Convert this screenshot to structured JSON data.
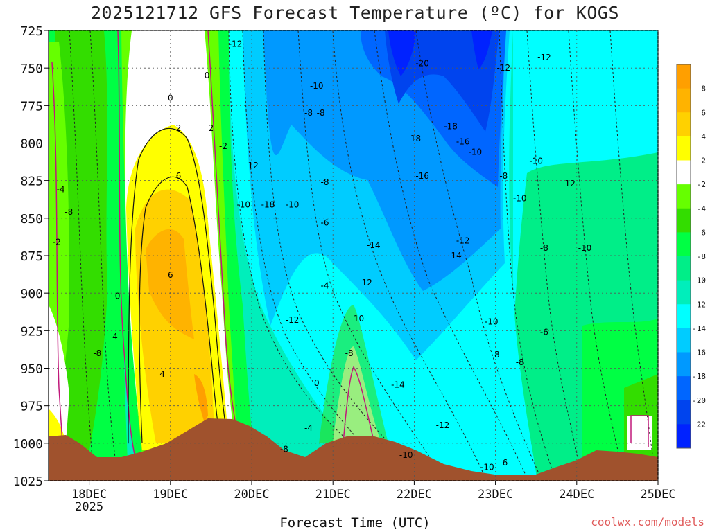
{
  "title": "2025121712 GFS Forecast Temperature (ºC) for KOGS",
  "credit": "coolwx.com/models",
  "chart_data": {
    "type": "heatmap",
    "title": "2025121712 GFS Forecast Temperature (ºC) for KOGS",
    "xlabel": "Forecast Time (UTC)",
    "ylabel": "",
    "y_ticks": [
      "725",
      "750",
      "775",
      "800",
      "825",
      "850",
      "875",
      "900",
      "925",
      "950",
      "975",
      "1000",
      "1025"
    ],
    "y_range": [
      725,
      1025
    ],
    "x_ticks": [
      "18DEC",
      "19DEC",
      "20DEC",
      "21DEC",
      "22DEC",
      "23DEC",
      "24DEC",
      "25DEC"
    ],
    "x_year_label": "2025",
    "x_range": [
      "17DEC 12Z",
      "25DEC 00Z"
    ],
    "colorbar": {
      "labels": [
        "8",
        "6",
        "4",
        "2",
        "-2",
        "-4",
        "-6",
        "-8",
        "-10",
        "-12",
        "-14",
        "-16",
        "-18",
        "-20",
        "-22"
      ],
      "colors": [
        "#ff9f00",
        "#ffb300",
        "#ffd100",
        "#ffff00",
        "#ffffff",
        "#66ff00",
        "#33dd00",
        "#00ff44",
        "#00ee88",
        "#00eebb",
        "#00ffff",
        "#00ccff",
        "#0099ff",
        "#0066ff",
        "#0044ee",
        "#0022ff"
      ]
    },
    "contour_labels": [
      {
        "t": 1.6,
        "p": 790,
        "v": "2"
      },
      {
        "t": 1.6,
        "p": 822,
        "v": "6"
      },
      {
        "t": 1.5,
        "p": 888,
        "v": "6"
      },
      {
        "t": 1.4,
        "p": 954,
        "v": "4"
      },
      {
        "t": 1.5,
        "p": 770,
        "v": "0"
      },
      {
        "t": 2.0,
        "p": 790,
        "v": "2"
      },
      {
        "t": 1.95,
        "p": 755,
        "v": "0"
      },
      {
        "t": 2.15,
        "p": 802,
        "v": "-2"
      },
      {
        "t": 2.3,
        "p": 734,
        "v": "-12"
      },
      {
        "t": 2.5,
        "p": 815,
        "v": "-12"
      },
      {
        "t": 2.4,
        "p": 841,
        "v": "-10"
      },
      {
        "t": 2.7,
        "p": 841,
        "v": "-18"
      },
      {
        "t": 3.0,
        "p": 841,
        "v": "-10"
      },
      {
        "t": 3.0,
        "p": 918,
        "v": "-12"
      },
      {
        "t": 3.2,
        "p": 780,
        "v": "-8"
      },
      {
        "t": 3.35,
        "p": 780,
        "v": "-8"
      },
      {
        "t": 3.3,
        "p": 762,
        "v": "-10"
      },
      {
        "t": 3.4,
        "p": 826,
        "v": "-8"
      },
      {
        "t": 3.4,
        "p": 853,
        "v": "-6"
      },
      {
        "t": 3.4,
        "p": 895,
        "v": "-4"
      },
      {
        "t": 3.3,
        "p": 960,
        "v": "0"
      },
      {
        "t": 3.2,
        "p": 990,
        "v": "-4"
      },
      {
        "t": 2.9,
        "p": 1004,
        "v": "-8"
      },
      {
        "t": 4.0,
        "p": 868,
        "v": "-14"
      },
      {
        "t": 3.9,
        "p": 893,
        "v": "-12"
      },
      {
        "t": 3.8,
        "p": 917,
        "v": "-10"
      },
      {
        "t": 3.7,
        "p": 940,
        "v": "-8"
      },
      {
        "t": 4.6,
        "p": 747,
        "v": "-20"
      },
      {
        "t": 4.5,
        "p": 797,
        "v": "-18"
      },
      {
        "t": 4.6,
        "p": 822,
        "v": "-16"
      },
      {
        "t": 4.95,
        "p": 789,
        "v": "-18"
      },
      {
        "t": 5.1,
        "p": 799,
        "v": "-16"
      },
      {
        "t": 5.25,
        "p": 806,
        "v": "-10"
      },
      {
        "t": 5.1,
        "p": 865,
        "v": "-12"
      },
      {
        "t": 5.0,
        "p": 875,
        "v": "-14"
      },
      {
        "t": 5.6,
        "p": 750,
        "v": "-12"
      },
      {
        "t": 6.1,
        "p": 743,
        "v": "-12"
      },
      {
        "t": 5.6,
        "p": 822,
        "v": "-8"
      },
      {
        "t": 5.8,
        "p": 837,
        "v": "-10"
      },
      {
        "t": 6.0,
        "p": 812,
        "v": "-10"
      },
      {
        "t": 6.4,
        "p": 827,
        "v": "-12"
      },
      {
        "t": 6.1,
        "p": 870,
        "v": "-8"
      },
      {
        "t": 6.6,
        "p": 870,
        "v": "-10"
      },
      {
        "t": 5.45,
        "p": 919,
        "v": "-10"
      },
      {
        "t": 5.5,
        "p": 941,
        "v": "-8"
      },
      {
        "t": 5.8,
        "p": 946,
        "v": "-8"
      },
      {
        "t": 6.1,
        "p": 926,
        "v": "-6"
      },
      {
        "t": 4.3,
        "p": 961,
        "v": "-14"
      },
      {
        "t": 4.85,
        "p": 988,
        "v": "-12"
      },
      {
        "t": 4.4,
        "p": 1008,
        "v": "-10"
      },
      {
        "t": 5.4,
        "p": 1016,
        "v": "-10"
      },
      {
        "t": 5.6,
        "p": 1013,
        "v": "-6"
      },
      {
        "t": 0.15,
        "p": 831,
        "v": "-4"
      },
      {
        "t": 0.25,
        "p": 846,
        "v": "-8"
      },
      {
        "t": 0.1,
        "p": 866,
        "v": "-2"
      },
      {
        "t": 0.85,
        "p": 902,
        "v": "0"
      },
      {
        "t": 0.8,
        "p": 929,
        "v": "-4"
      },
      {
        "t": 0.6,
        "p": 940,
        "v": "-8"
      }
    ]
  }
}
